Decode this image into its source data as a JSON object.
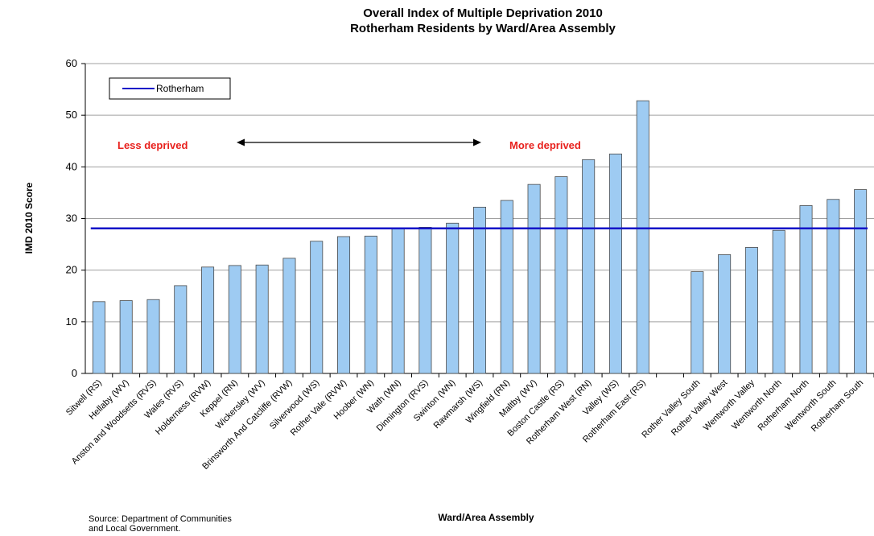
{
  "chart_data": {
    "type": "bar",
    "title": "Overall Index of Multiple Deprivation 2010",
    "subtitle": "Rotherham Residents by Ward/Area Assembly",
    "xlabel": "Ward/Area Assembly",
    "ylabel": "IMD 2010 Score",
    "ylim": [
      0,
      60
    ],
    "yticks": [
      0,
      10,
      20,
      30,
      40,
      50,
      60
    ],
    "grid": true,
    "legend_position": "top-left",
    "categories": [
      "Sitwell (RS)",
      "Hellaby (WV)",
      "Anston and Woodsetts (RVS)",
      "Wales (RVS)",
      "Holderness (RVW)",
      "Keppel (RN)",
      "Wickersley (WV)",
      "Brinsworth And Catcliffe (RVW)",
      "Silverwood (WS)",
      "Rother Vale (RVW)",
      "Hoober (WN)",
      "Wath (WN)",
      "Dinnington (RVS)",
      "Swinton (WN)",
      "Rawmarsh (WS)",
      "Wingfield (RN)",
      "Maltby (WV)",
      "Boston Castle (RS)",
      "Rotherham West (RN)",
      "Valley (WS)",
      "Rotherham East (RS)",
      "",
      "Rother Valley South",
      "Rother Valley West",
      "Wentworth Valley",
      "Wentworth North",
      "Rotherham North",
      "Wentworth South",
      "Rotherham South"
    ],
    "series": [
      {
        "name": "",
        "color": "#9ecbf2",
        "values": [
          13.9,
          14.1,
          14.3,
          17.0,
          20.6,
          20.9,
          21.0,
          22.3,
          25.6,
          26.5,
          26.6,
          28.0,
          28.3,
          29.1,
          32.2,
          33.5,
          36.6,
          38.1,
          41.4,
          42.5,
          52.8,
          null,
          19.7,
          23.0,
          24.4,
          27.7,
          32.5,
          33.7,
          35.6
        ]
      }
    ],
    "reference_line": {
      "name": "Rotherham",
      "value": 28.1,
      "color": "#1414c8"
    },
    "annotations": {
      "left": "Less deprived",
      "right": "More deprived",
      "color": "#e8201c"
    }
  },
  "source_line1": "Source: Department of  Communities",
  "source_line2": "and Local Government."
}
